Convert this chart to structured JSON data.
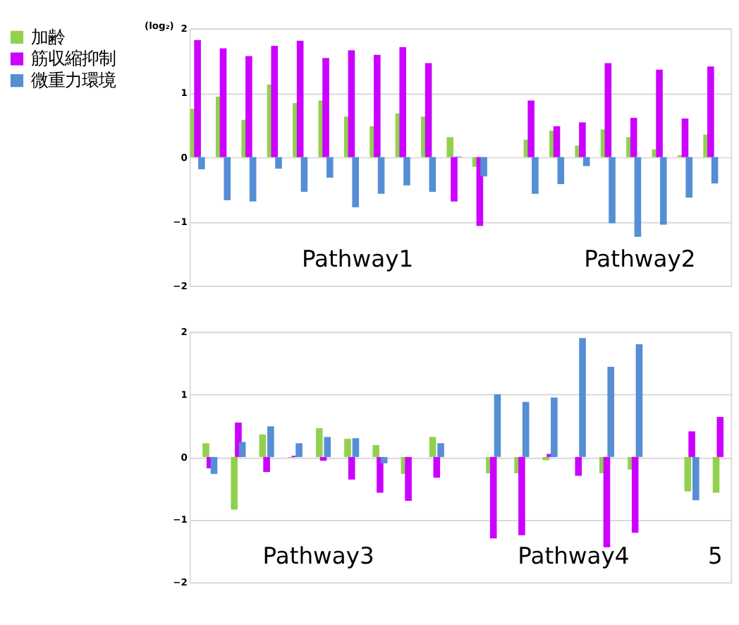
{
  "chart_data": [
    {
      "type": "bar",
      "ylabel": "(log₂)",
      "categories": [
        null,
        null,
        null,
        null,
        null,
        null,
        null,
        null,
        null,
        null,
        null,
        null,
        null,
        null,
        null,
        null,
        null,
        null,
        null,
        null,
        null
      ],
      "series": [
        {
          "name": "加齢",
          "color": "#92d050",
          "values": [
            0.75,
            0.94,
            0.58,
            1.13,
            0.84,
            0.88,
            0.63,
            0.48,
            0.68,
            0.63,
            0.31,
            -0.15,
            null,
            0.27,
            0.41,
            0.18,
            0.43,
            0.31,
            0.12,
            0.03,
            0.35
          ]
        },
        {
          "name": "筋収縮抑制",
          "color": "#cc00ff",
          "values": [
            1.82,
            1.69,
            1.57,
            1.73,
            1.81,
            1.54,
            1.66,
            1.59,
            1.71,
            1.46,
            -0.69,
            -1.07,
            null,
            0.88,
            0.48,
            0.54,
            1.46,
            0.61,
            1.36,
            0.6,
            1.41
          ]
        },
        {
          "name": "微重力環境",
          "color": "#558ed5",
          "values": [
            -0.19,
            -0.67,
            -0.69,
            -0.18,
            -0.54,
            -0.32,
            -0.78,
            -0.57,
            -0.44,
            -0.54,
            0.01,
            -0.3,
            null,
            -0.57,
            -0.42,
            -0.14,
            -1.03,
            -1.24,
            -1.05,
            -0.63,
            -0.41
          ]
        }
      ],
      "ylim": [
        -2,
        2
      ],
      "yticks": [
        -2,
        -1,
        0,
        1,
        2
      ],
      "grid": "y",
      "legend": "left",
      "tick_labels": "y",
      "annotations": [
        "Pathway1",
        "Pathway2"
      ]
    },
    {
      "type": "bar",
      "categories": [
        null,
        null,
        null,
        null,
        null,
        null,
        null,
        null,
        null,
        null,
        null,
        null,
        null,
        null,
        null,
        null,
        null,
        null,
        null
      ],
      "series": [
        {
          "color": "#92d050",
          "values": [
            0.22,
            -0.84,
            0.36,
            -0.01,
            0.46,
            0.29,
            0.19,
            -0.27,
            0.32,
            null,
            -0.26,
            -0.26,
            -0.05,
            null,
            -0.26,
            -0.2,
            null,
            -0.55,
            -0.57
          ]
        },
        {
          "color": "#cc00ff",
          "values": [
            -0.18,
            0.55,
            -0.24,
            0.02,
            -0.06,
            -0.36,
            -0.57,
            -0.7,
            -0.33,
            null,
            -1.3,
            -1.25,
            0.05,
            -0.3,
            -1.44,
            -1.21,
            null,
            0.41,
            0.64
          ]
        },
        {
          "color": "#558ed5",
          "values": [
            -0.27,
            0.24,
            0.49,
            0.22,
            0.32,
            0.3,
            -0.1,
            0.0,
            0.22,
            null,
            1.0,
            0.88,
            0.95,
            1.9,
            1.44,
            1.8,
            null,
            -0.69,
            null
          ]
        }
      ],
      "ylim": [
        -2,
        2
      ],
      "yticks": [
        -2,
        -1,
        0,
        1,
        2
      ],
      "grid": "y",
      "tick_labels": "y",
      "annotations": [
        "Pathway3",
        "Pathway4",
        "5"
      ]
    }
  ]
}
